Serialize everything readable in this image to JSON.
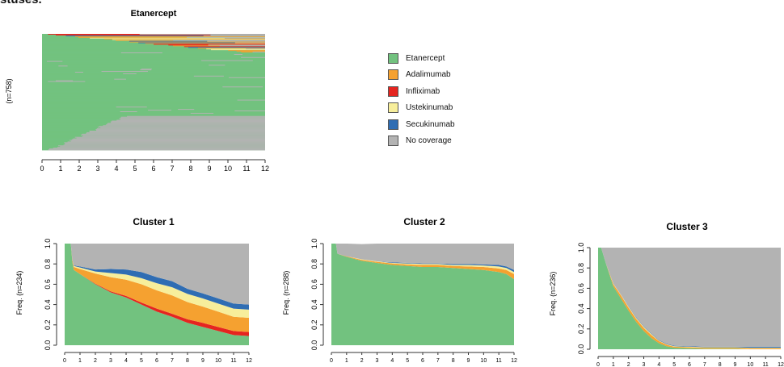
{
  "page": {
    "top_cut_text": "stuses."
  },
  "colors": {
    "Etanercept": "#72c27f",
    "Adalimumab": "#f5a130",
    "Infliximab": "#e52520",
    "Ustekinumab": "#f7ee9b",
    "Secukinumab": "#2f6db3",
    "No coverage": "#b3b3b3"
  },
  "legend": {
    "items": [
      {
        "label": "Etanercept",
        "color": "#72c27f"
      },
      {
        "label": "Adalimumab",
        "color": "#f5a130"
      },
      {
        "label": "Infliximab",
        "color": "#e52520"
      },
      {
        "label": "Ustekinumab",
        "color": "#f7ee9b"
      },
      {
        "label": "Secukinumab",
        "color": "#2f6db3"
      },
      {
        "label": "No coverage",
        "color": "#b3b3b3"
      }
    ]
  },
  "chart_data": [
    {
      "type": "heatmap",
      "title": "Etanercept",
      "ylabel": "(n=758)",
      "xlim": [
        0,
        12
      ],
      "xticks": [
        "0",
        "1",
        "2",
        "3",
        "4",
        "5",
        "6",
        "7",
        "8",
        "9",
        "10",
        "11",
        "12"
      ],
      "n_sequences": 758,
      "share_no_coverage_at_12": 0.3,
      "share_switched_at_12": 0.16
    },
    {
      "type": "area",
      "title": "Cluster 1",
      "ylabel": "Freq. (n=234)",
      "ylim": [
        0,
        1
      ],
      "xlim": [
        0,
        12
      ],
      "xticks": [
        "0",
        "1",
        "2",
        "3",
        "4",
        "5",
        "6",
        "7",
        "8",
        "9",
        "10",
        "11",
        "12"
      ],
      "yticks": [
        "0.0",
        "0.2",
        "0.4",
        "0.6",
        "0.8",
        "1.0"
      ],
      "x": [
        0.0,
        0.4,
        0.5,
        0.6,
        1,
        2,
        3,
        4,
        5,
        6,
        7,
        8,
        9,
        10,
        11,
        12
      ],
      "series": [
        {
          "name": "Etanercept",
          "values": [
            1.0,
            1.0,
            0.82,
            0.74,
            0.7,
            0.6,
            0.52,
            0.47,
            0.4,
            0.33,
            0.28,
            0.22,
            0.18,
            0.14,
            0.1,
            0.09
          ]
        },
        {
          "name": "Infliximab",
          "values": [
            0,
            0,
            0,
            0,
            0,
            0.005,
            0.01,
            0.015,
            0.02,
            0.03,
            0.03,
            0.035,
            0.04,
            0.04,
            0.04,
            0.04
          ]
        },
        {
          "name": "Adalimumab",
          "values": [
            0,
            0,
            0.02,
            0.03,
            0.05,
            0.1,
            0.14,
            0.16,
            0.18,
            0.18,
            0.18,
            0.17,
            0.16,
            0.15,
            0.14,
            0.14
          ]
        },
        {
          "name": "Ustekinumab",
          "values": [
            0,
            0,
            0,
            0.01,
            0.015,
            0.02,
            0.04,
            0.05,
            0.06,
            0.07,
            0.08,
            0.08,
            0.08,
            0.08,
            0.08,
            0.08
          ]
        },
        {
          "name": "Secukinumab",
          "values": [
            0,
            0,
            0,
            0.005,
            0.01,
            0.02,
            0.04,
            0.05,
            0.06,
            0.06,
            0.06,
            0.05,
            0.05,
            0.05,
            0.05,
            0.05
          ]
        },
        {
          "name": "No coverage",
          "values": [
            0,
            0,
            0.16,
            0.215,
            0.225,
            0.255,
            0.25,
            0.255,
            0.28,
            0.33,
            0.37,
            0.445,
            0.49,
            0.54,
            0.59,
            0.6
          ]
        }
      ]
    },
    {
      "type": "area",
      "title": "Cluster 2",
      "ylabel": "Freq. (n=288)",
      "ylim": [
        0,
        1
      ],
      "xlim": [
        0,
        12
      ],
      "xticks": [
        "0",
        "1",
        "2",
        "3",
        "4",
        "5",
        "6",
        "7",
        "8",
        "9",
        "10",
        "11",
        "12"
      ],
      "yticks": [
        "0.0",
        "0.2",
        "0.4",
        "0.6",
        "0.8",
        "1.0"
      ],
      "x": [
        0.0,
        0.3,
        0.4,
        1,
        2,
        3,
        4,
        5,
        6,
        7,
        8,
        9,
        10,
        11,
        11.5,
        12
      ],
      "series": [
        {
          "name": "Etanercept",
          "values": [
            1.0,
            1.0,
            0.9,
            0.87,
            0.83,
            0.81,
            0.79,
            0.78,
            0.77,
            0.77,
            0.76,
            0.75,
            0.74,
            0.72,
            0.7,
            0.65
          ]
        },
        {
          "name": "Infliximab",
          "values": [
            0,
            0,
            0,
            0,
            0,
            0,
            0,
            0,
            0,
            0,
            0,
            0,
            0,
            0,
            0,
            0
          ]
        },
        {
          "name": "Adalimumab",
          "values": [
            0,
            0,
            0,
            0.005,
            0.01,
            0.01,
            0.015,
            0.015,
            0.02,
            0.02,
            0.02,
            0.025,
            0.03,
            0.035,
            0.04,
            0.05
          ]
        },
        {
          "name": "Ustekinumab",
          "values": [
            0,
            0,
            0,
            0,
            0.005,
            0.005,
            0.005,
            0.01,
            0.01,
            0.01,
            0.01,
            0.015,
            0.015,
            0.02,
            0.02,
            0.02
          ]
        },
        {
          "name": "Secukinumab",
          "values": [
            0,
            0,
            0,
            0,
            0,
            0,
            0.005,
            0.005,
            0.005,
            0.005,
            0.01,
            0.01,
            0.01,
            0.015,
            0.015,
            0.02
          ]
        },
        {
          "name": "No coverage",
          "values": [
            0,
            0,
            0.1,
            0.125,
            0.15,
            0.175,
            0.185,
            0.19,
            0.195,
            0.195,
            0.2,
            0.2,
            0.205,
            0.21,
            0.225,
            0.26
          ]
        }
      ]
    },
    {
      "type": "area",
      "title": "Cluster 3",
      "ylabel": "Freq. (n=236)",
      "ylim": [
        0,
        1
      ],
      "xlim": [
        0,
        12
      ],
      "xticks": [
        "0",
        "1",
        "2",
        "3",
        "4",
        "5",
        "6",
        "7",
        "8",
        "9",
        "10",
        "11",
        "12"
      ],
      "yticks": [
        "0.0",
        "0.2",
        "0.4",
        "0.6",
        "0.8",
        "1.0"
      ],
      "x": [
        0.0,
        0.2,
        0.3,
        0.5,
        1,
        1.5,
        2,
        2.5,
        3,
        3.5,
        4,
        4.5,
        5,
        6,
        7,
        8,
        9,
        10,
        11,
        12
      ],
      "series": [
        {
          "name": "Etanercept",
          "values": [
            1.0,
            1.0,
            0.95,
            0.85,
            0.62,
            0.5,
            0.38,
            0.27,
            0.18,
            0.11,
            0.06,
            0.03,
            0.015,
            0.01,
            0.005,
            0.005,
            0.005,
            0,
            0,
            0
          ]
        },
        {
          "name": "Infliximab",
          "values": [
            0,
            0,
            0,
            0,
            0,
            0,
            0,
            0,
            0,
            0,
            0,
            0,
            0,
            0,
            0,
            0,
            0,
            0,
            0,
            0
          ]
        },
        {
          "name": "Adalimumab",
          "values": [
            0,
            0,
            0,
            0,
            0.02,
            0.03,
            0.03,
            0.03,
            0.03,
            0.03,
            0.02,
            0.015,
            0.01,
            0.01,
            0.01,
            0.01,
            0.01,
            0.01,
            0.01,
            0.01
          ]
        },
        {
          "name": "Ustekinumab",
          "values": [
            0,
            0,
            0,
            0,
            0.005,
            0.005,
            0.01,
            0.01,
            0.01,
            0.01,
            0.005,
            0.005,
            0.005,
            0.005,
            0.005,
            0.005,
            0.005,
            0.005,
            0.005,
            0.005
          ]
        },
        {
          "name": "Secukinumab",
          "values": [
            0,
            0,
            0,
            0,
            0,
            0,
            0.005,
            0.005,
            0.005,
            0.005,
            0.005,
            0.005,
            0.005,
            0.005,
            0.005,
            0.005,
            0.005,
            0.01,
            0.01,
            0.01
          ]
        },
        {
          "name": "No coverage",
          "values": [
            0,
            0,
            0.05,
            0.15,
            0.355,
            0.465,
            0.575,
            0.685,
            0.775,
            0.845,
            0.91,
            0.945,
            0.965,
            0.97,
            0.975,
            0.975,
            0.975,
            0.975,
            0.975,
            0.975
          ]
        }
      ]
    }
  ]
}
